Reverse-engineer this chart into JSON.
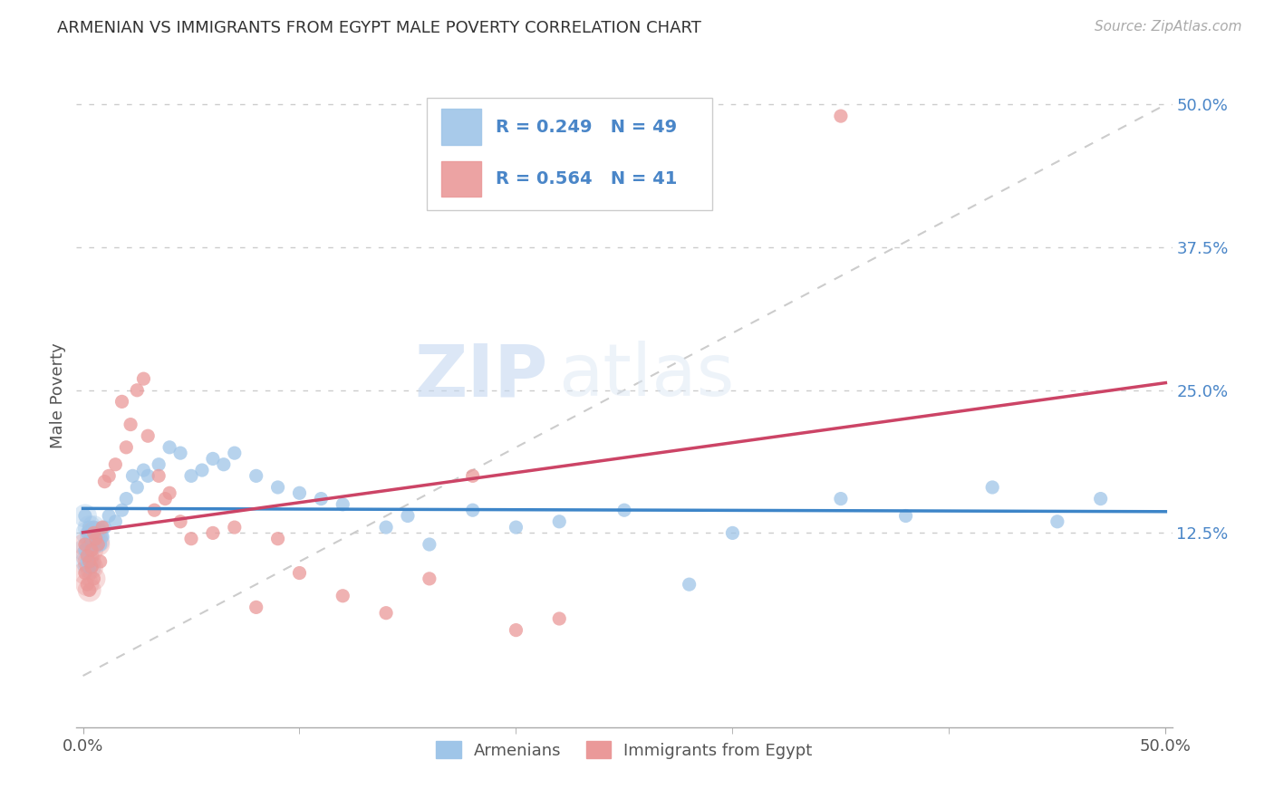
{
  "title": "ARMENIAN VS IMMIGRANTS FROM EGYPT MALE POVERTY CORRELATION CHART",
  "source": "Source: ZipAtlas.com",
  "ylabel": "Male Poverty",
  "xlim": [
    0.0,
    0.5
  ],
  "ylim": [
    0.0,
    0.52
  ],
  "legend_armenians": "Armenians",
  "legend_egypt": "Immigrants from Egypt",
  "R_armenians": 0.249,
  "N_armenians": 49,
  "R_egypt": 0.564,
  "N_egypt": 41,
  "color_armenians": "#9fc5e8",
  "color_egypt": "#ea9999",
  "color_trendline_armenians": "#3d85c8",
  "color_trendline_egypt": "#cc4466",
  "watermark_zip": "ZIP",
  "watermark_atlas": "atlas",
  "armenians_x": [
    0.001,
    0.001,
    0.002,
    0.002,
    0.003,
    0.003,
    0.004,
    0.004,
    0.005,
    0.006,
    0.007,
    0.008,
    0.009,
    0.01,
    0.012,
    0.015,
    0.018,
    0.02,
    0.023,
    0.025,
    0.028,
    0.03,
    0.035,
    0.04,
    0.045,
    0.05,
    0.055,
    0.06,
    0.065,
    0.07,
    0.08,
    0.09,
    0.1,
    0.11,
    0.12,
    0.14,
    0.15,
    0.16,
    0.18,
    0.2,
    0.22,
    0.25,
    0.28,
    0.3,
    0.35,
    0.38,
    0.42,
    0.45,
    0.47
  ],
  "armenians_y": [
    0.14,
    0.11,
    0.125,
    0.1,
    0.13,
    0.095,
    0.12,
    0.115,
    0.13,
    0.125,
    0.118,
    0.115,
    0.122,
    0.13,
    0.14,
    0.135,
    0.145,
    0.155,
    0.175,
    0.165,
    0.18,
    0.175,
    0.185,
    0.2,
    0.195,
    0.175,
    0.18,
    0.19,
    0.185,
    0.195,
    0.175,
    0.165,
    0.16,
    0.155,
    0.15,
    0.13,
    0.14,
    0.115,
    0.145,
    0.13,
    0.135,
    0.145,
    0.08,
    0.125,
    0.155,
    0.14,
    0.165,
    0.135,
    0.155
  ],
  "egypt_x": [
    0.001,
    0.001,
    0.002,
    0.002,
    0.003,
    0.003,
    0.004,
    0.004,
    0.005,
    0.005,
    0.006,
    0.007,
    0.008,
    0.009,
    0.01,
    0.012,
    0.015,
    0.018,
    0.02,
    0.022,
    0.025,
    0.028,
    0.03,
    0.033,
    0.035,
    0.038,
    0.04,
    0.045,
    0.05,
    0.06,
    0.07,
    0.08,
    0.09,
    0.1,
    0.12,
    0.14,
    0.16,
    0.18,
    0.2,
    0.22,
    0.35
  ],
  "egypt_y": [
    0.115,
    0.09,
    0.105,
    0.08,
    0.1,
    0.075,
    0.11,
    0.095,
    0.125,
    0.085,
    0.12,
    0.115,
    0.1,
    0.13,
    0.17,
    0.175,
    0.185,
    0.24,
    0.2,
    0.22,
    0.25,
    0.26,
    0.21,
    0.145,
    0.175,
    0.155,
    0.16,
    0.135,
    0.12,
    0.125,
    0.13,
    0.06,
    0.12,
    0.09,
    0.07,
    0.055,
    0.085,
    0.175,
    0.04,
    0.05,
    0.49
  ]
}
